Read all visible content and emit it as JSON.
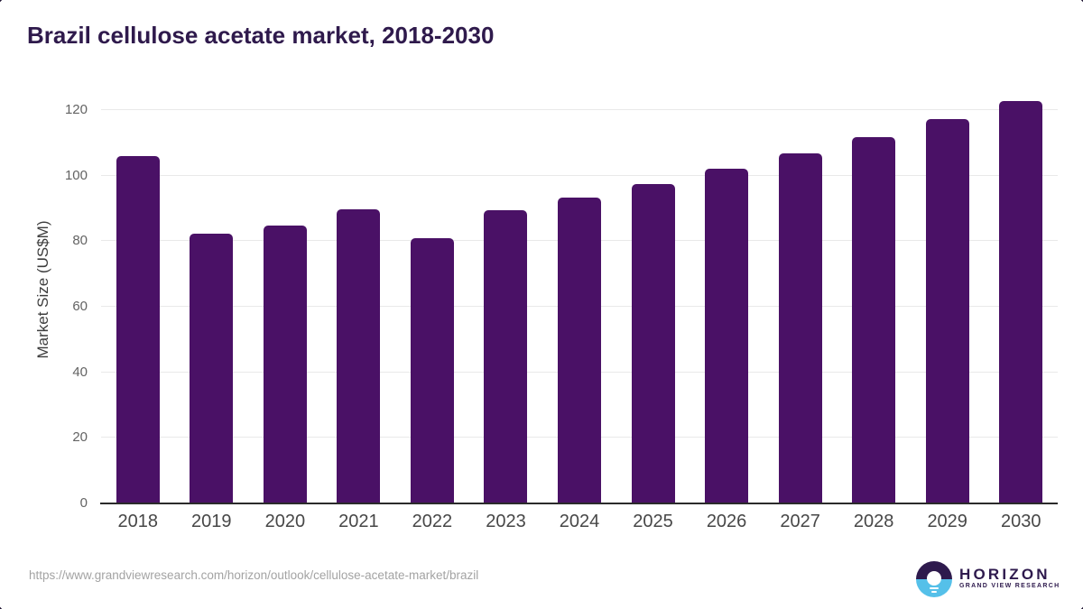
{
  "title": "Brazil cellulose acetate market, 2018-2030",
  "chart_data": {
    "type": "bar",
    "title": "Brazil cellulose acetate market, 2018-2030",
    "categories": [
      "2018",
      "2019",
      "2020",
      "2021",
      "2022",
      "2023",
      "2024",
      "2025",
      "2026",
      "2027",
      "2028",
      "2029",
      "2030"
    ],
    "values": [
      105.9,
      82.3,
      84.7,
      89.8,
      80.9,
      89.4,
      93.3,
      97.4,
      102.1,
      106.9,
      111.8,
      117.4,
      122.8
    ],
    "xlabel": "",
    "ylabel": "Market Size (US$M)",
    "ylim": [
      0,
      125
    ],
    "yticks": [
      0,
      20,
      40,
      60,
      80,
      100,
      120
    ],
    "grid": true,
    "legend": false,
    "bar_color": "#4a1166"
  },
  "colors": {
    "title_text": "#2f1a4c",
    "bar": "#4a1166",
    "gridline": "#e9e9e9",
    "axis_line": "#2b2b2b",
    "y_tick_label": "#636363",
    "x_tick_label": "#474747",
    "url_text": "#a3a3a3",
    "logo_purple": "#2e1a4d",
    "logo_blue": "#55c0e9"
  },
  "footer": {
    "source_url": "https://www.grandviewresearch.com/horizon/outlook/cellulose-acetate-market/brazil",
    "logo": {
      "name": "HORIZON",
      "subtitle": "GRAND VIEW RESEARCH"
    }
  }
}
